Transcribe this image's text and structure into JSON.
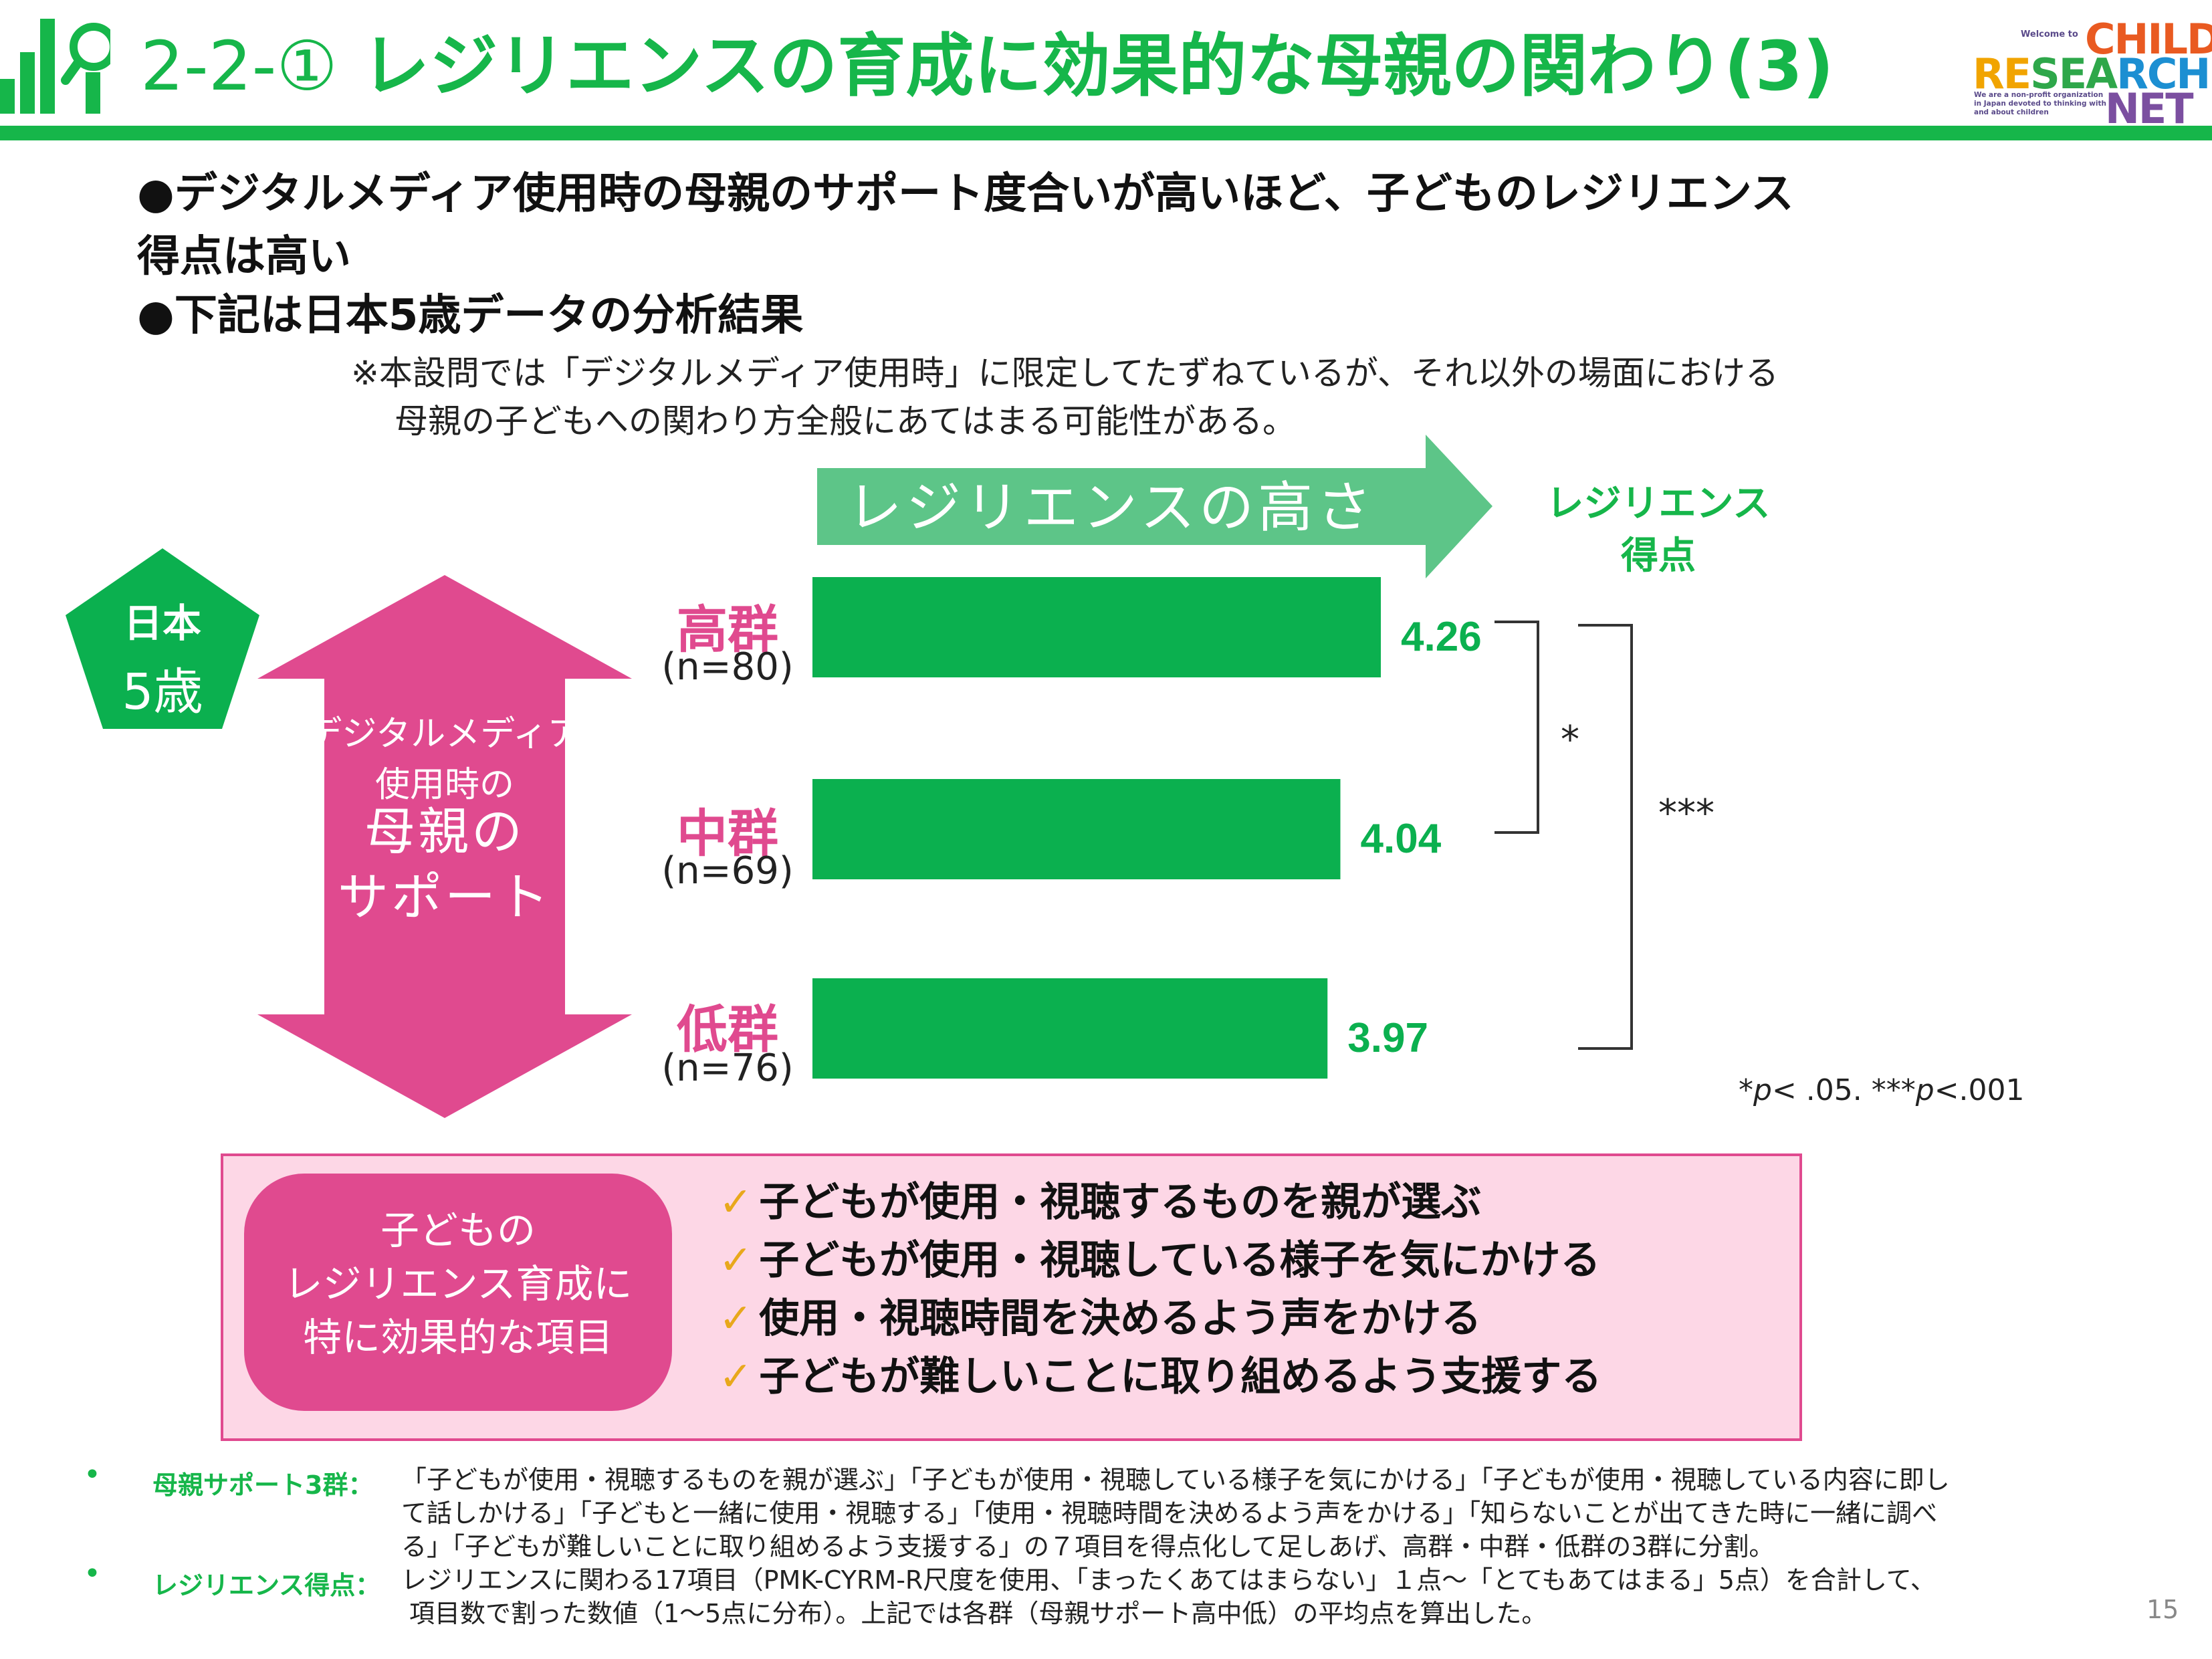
{
  "header": {
    "section_number": "2-2-①",
    "title": "レジリエンスの育成に効果的な母親の関わり(3)"
  },
  "brand": {
    "welcome": "Welcome to",
    "word1": "CHILD",
    "word2a": "RE",
    "word2b": "SEA",
    "word2c": "RCH",
    "word3": "NET",
    "tagline": "We are a non-profit organization in Japan devoted to thinking with and about children"
  },
  "bullets": [
    "●デジタルメディア使用時の母親のサポート度合いが高いほど、子どものレジリエンス",
    "得点は高い",
    "●下記は日本5歳データの分析結果"
  ],
  "note": [
    "※本設問では「デジタルメディア使用時」に限定してたずねているが、それ以外の場面における",
    "母親の子どもへの関わり方全般にあてはまる可能性がある。"
  ],
  "diagram": {
    "top_arrow_label": "レジリエンスの高さ",
    "score_header": [
      "レジリエンス",
      "得点"
    ],
    "country_badge": [
      "日本",
      "5歳"
    ],
    "support_arrow_label": [
      "デジタルメディア",
      "使用時の",
      "母親の",
      "サポート"
    ]
  },
  "chart_data": {
    "type": "bar",
    "orientation": "horizontal",
    "categories": [
      "高群",
      "中群",
      "低群"
    ],
    "sample_sizes": [
      "(n=80)",
      "(n=69)",
      "(n=76)"
    ],
    "values": [
      4.26,
      4.04,
      3.97
    ],
    "value_labels": [
      "4.26",
      "4.04",
      "3.97"
    ],
    "bar_color": "#0bb04f",
    "significance": [
      {
        "between": [
          "高群",
          "中群"
        ],
        "mark": "*"
      },
      {
        "between": [
          "高群",
          "低群"
        ],
        "mark": "***"
      }
    ],
    "p_note": {
      "a1": "*",
      "a2": "p",
      "a3": "< .05. ***",
      "a4": "p",
      "a5": "<.001"
    }
  },
  "panel": {
    "label": [
      "子どもの",
      "レジリエンス育成に",
      "特に効果的な項目"
    ],
    "checkmark": "✓",
    "items": [
      "子どもが使用・視聴するものを親が選ぶ",
      "子どもが使用・視聴している様子を気にかける",
      "使用・視聴時間を決めるよう声をかける",
      "子どもが難しいことに取り組めるよう支援する"
    ]
  },
  "footnotes": {
    "bullet": "•",
    "support": {
      "label": "母親サポート3群：",
      "lines": [
        "「子どもが使用・視聴するものを親が選ぶ」「子どもが使用・視聴している様子を気にかける」「子どもが使用・視聴している内容に即し",
        "て話しかける」「子どもと一緒に使用・視聴する」「使用・視聴時間を決めるよう声をかける」「知らないことが出てきた時に一緒に調べ",
        "る」「子どもが難しいことに取り組めるよう支援する」の７項目を得点化して足しあげ、高群・中群・低群の3群に分割。"
      ]
    },
    "resilience": {
      "label": "レジリエンス得点：",
      "lines": [
        "レジリエンスに関わる17項目（PMK-CYRM-R尺度を使用、「まったくあてはまらない」１点〜「とてもあてはまる」5点）を合計して、",
        "項目数で割った数値（1〜5点に分布）。上記では各群（母親サポート高中低）の平均点を算出した。"
      ]
    }
  },
  "page_number": "15",
  "colors": {
    "green": "#16b64a",
    "bar_green": "#0bb04f",
    "light_green": "#5dc588",
    "pink": "#e04a8f",
    "pink_bg": "#fdd7e6",
    "check": "#e8a81c"
  }
}
